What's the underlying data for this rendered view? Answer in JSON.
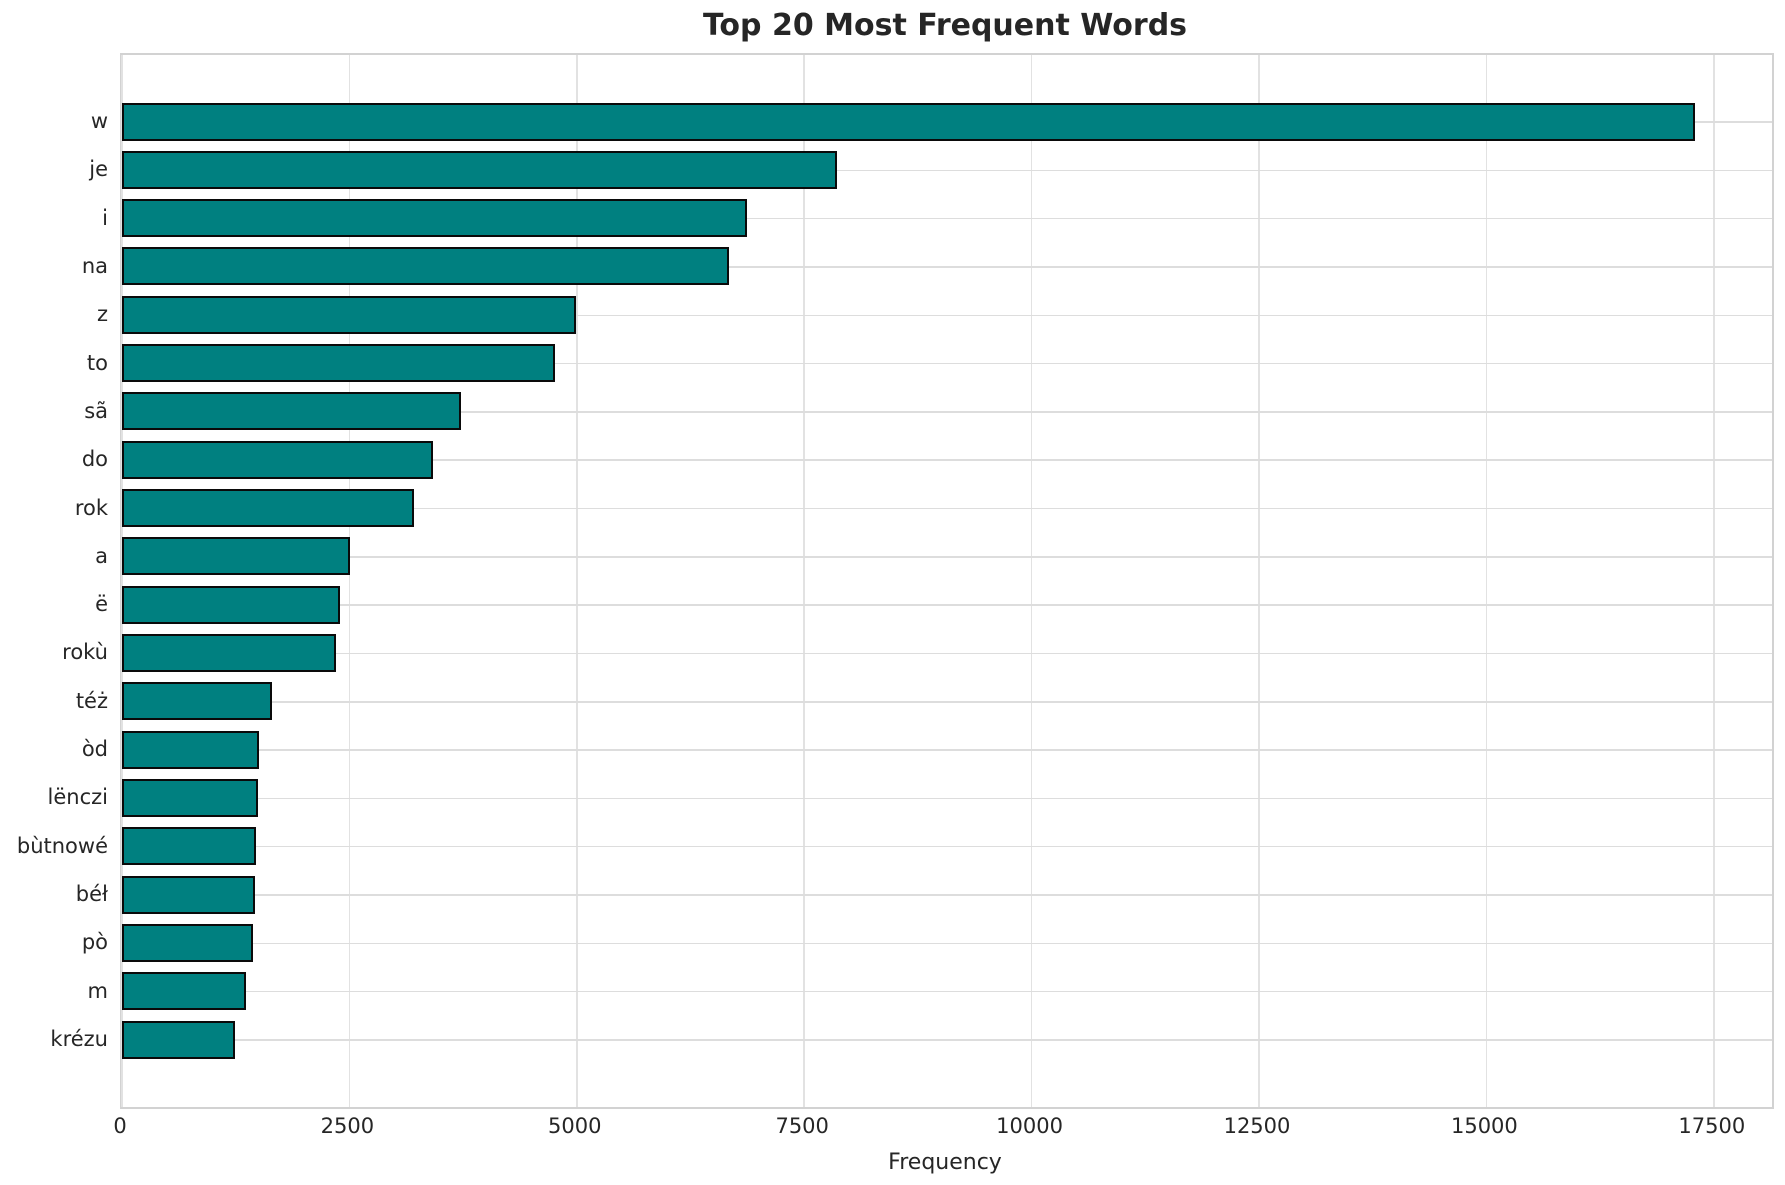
{
  "chart_data": {
    "type": "bar",
    "orientation": "horizontal",
    "title": "Top 20 Most Frequent Words",
    "xlabel": "Frequency",
    "ylabel": "",
    "categories": [
      "w",
      "je",
      "i",
      "na",
      "z",
      "to",
      "sã",
      "do",
      "rok",
      "a",
      "ë",
      "rokù",
      "téż",
      "òd",
      "lënczi",
      "bùtnowé",
      "béł",
      "pò",
      "m",
      "krézu"
    ],
    "values": [
      17280,
      7840,
      6860,
      6660,
      4970,
      4740,
      3715,
      3400,
      3190,
      2495,
      2385,
      2340,
      1630,
      1485,
      1475,
      1460,
      1450,
      1420,
      1350,
      1230
    ],
    "xticks": [
      0,
      2500,
      5000,
      7500,
      10000,
      12500,
      15000,
      17500
    ],
    "xlim": [
      0,
      18140
    ],
    "grid": true,
    "legend": false,
    "bar_color": "#008080",
    "bar_edge_color": "#0a0a0a",
    "grid_color": "#e0e0e0",
    "text_color": "#262626"
  }
}
